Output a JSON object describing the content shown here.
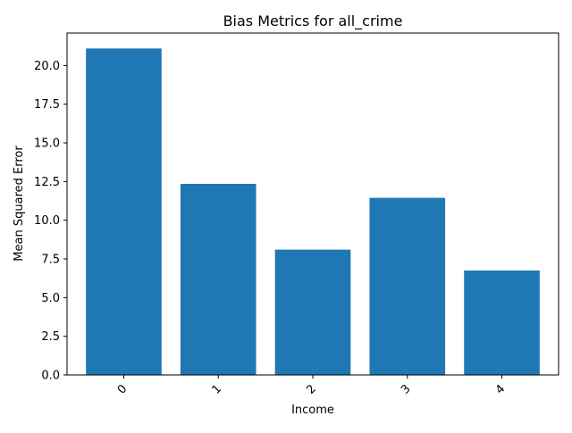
{
  "chart_data": {
    "type": "bar",
    "title": "Bias Metrics for all_crime",
    "xlabel": "Income",
    "ylabel": "Mean Squared Error",
    "categories": [
      "0",
      "1",
      "2",
      "3",
      "4"
    ],
    "values": [
      21.1,
      12.35,
      8.1,
      11.45,
      6.75
    ],
    "ylim": [
      0,
      22.1
    ],
    "yticks": [
      "0.0",
      "2.5",
      "5.0",
      "7.5",
      "10.0",
      "12.5",
      "15.0",
      "17.5",
      "20.0"
    ],
    "x_tick_rotation": 45,
    "bar_color": "#1f77b4",
    "grid": false,
    "legend": false
  }
}
